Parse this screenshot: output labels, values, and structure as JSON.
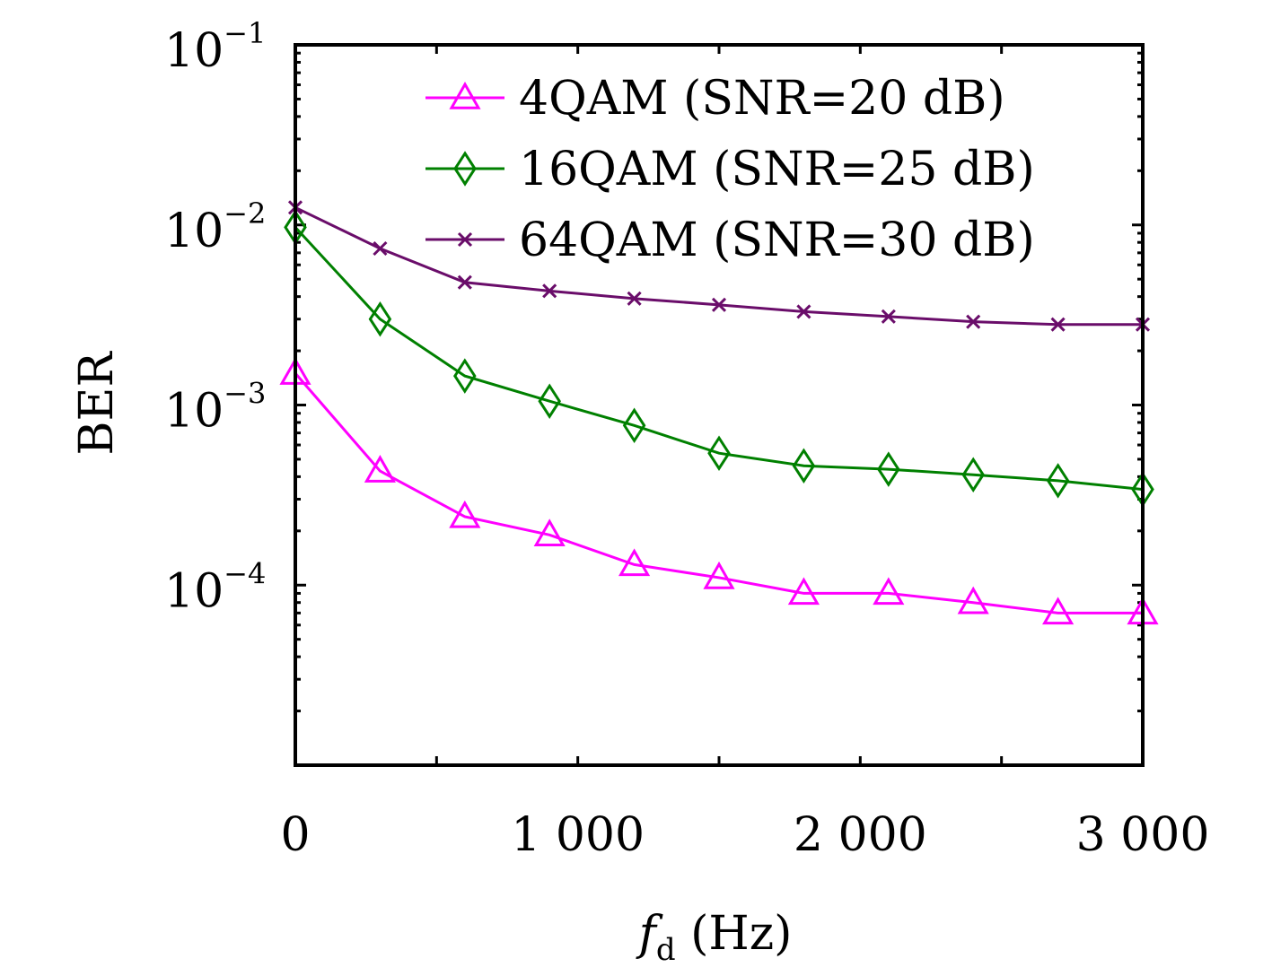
{
  "chart_data": {
    "type": "line",
    "xlabel": "f_d (Hz)",
    "xlabel_main": "f",
    "xlabel_sub": "d",
    "xlabel_unit": " (Hz)",
    "ylabel": "BER",
    "xlim": [
      0,
      3000
    ],
    "ylim": [
      1e-05,
      0.1
    ],
    "yscale": "log",
    "grid": false,
    "legend_position": "top-right",
    "x_ticks": [
      0,
      1000,
      2000,
      3000
    ],
    "x_tick_labels": [
      "0",
      "1 000",
      "2 000",
      "3 000"
    ],
    "y_ticks": [
      0.0001,
      0.001,
      0.01,
      0.1
    ],
    "y_tick_base": [
      "10",
      "10",
      "10",
      "10"
    ],
    "y_tick_exponents": [
      "−4",
      "−3",
      "−2",
      "−1"
    ],
    "x": [
      0,
      300,
      600,
      900,
      1200,
      1500,
      1800,
      2100,
      2400,
      2700,
      3000
    ],
    "series": [
      {
        "name": "4QAM (SNR=20 dB)",
        "color": "#ff00ff",
        "marker": "triangle",
        "values": [
          0.0015,
          0.00043,
          0.00024,
          0.00019,
          0.00013,
          0.00011,
          9e-05,
          9e-05,
          8e-05,
          7e-05,
          7e-05
        ]
      },
      {
        "name": "16QAM (SNR=25 dB)",
        "color": "#008000",
        "marker": "diamond",
        "values": [
          0.0097,
          0.003,
          0.00145,
          0.00105,
          0.00077,
          0.00054,
          0.00046,
          0.00044,
          0.00041,
          0.00038,
          0.00034
        ]
      },
      {
        "name": "64QAM (SNR=30 dB)",
        "color": "#6a0d6a",
        "marker": "x",
        "values": [
          0.0125,
          0.0074,
          0.0048,
          0.0043,
          0.0039,
          0.0036,
          0.0033,
          0.0031,
          0.0029,
          0.0028,
          0.0028
        ]
      }
    ]
  }
}
